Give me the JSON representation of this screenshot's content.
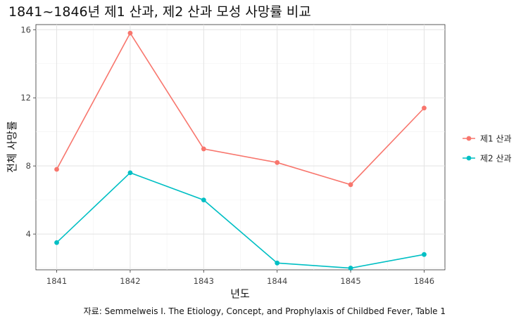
{
  "chart_data": {
    "type": "line",
    "title": "1841~1846년 제1 산과, 제2 산과 모성 사망률 비교",
    "xlabel": "년도",
    "ylabel": "전체 사망률",
    "caption": "자료: Semmelweis I. The Etiology, Concept, and Prophylaxis of Childbed Fever, Table 1",
    "x": [
      1841,
      1842,
      1843,
      1844,
      1845,
      1846
    ],
    "x_tick_labels": [
      "1841",
      "1842",
      "1843",
      "1844",
      "1845",
      "1846"
    ],
    "ylim": [
      1.9,
      16.3
    ],
    "y_ticks": [
      4,
      8,
      12,
      16
    ],
    "y_tick_labels": [
      "4",
      "8",
      "12",
      "16"
    ],
    "grid": true,
    "legend_position": "right",
    "series": [
      {
        "name": "제1 산과",
        "color": "#F8766D",
        "values": [
          7.8,
          15.8,
          9.0,
          8.2,
          6.9,
          11.4
        ]
      },
      {
        "name": "제2 산과",
        "color": "#00BFC4",
        "values": [
          3.5,
          7.6,
          6.0,
          2.3,
          2.0,
          2.8
        ]
      }
    ]
  }
}
